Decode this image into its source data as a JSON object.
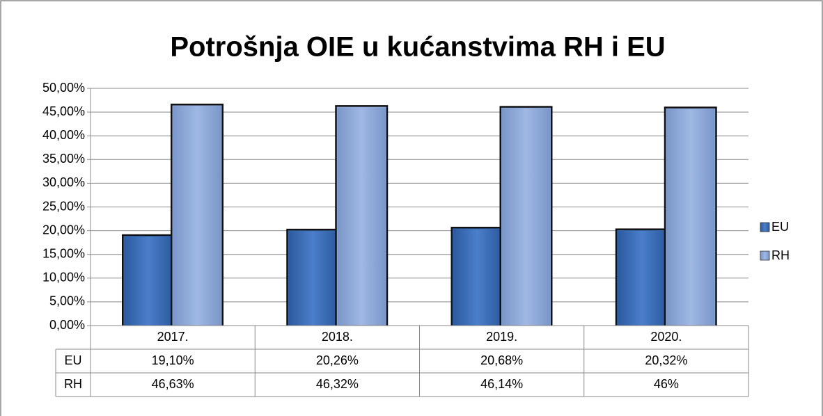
{
  "chart_data": {
    "type": "bar",
    "title": "Potrošnja OIE u kućanstvima RH i EU",
    "categories": [
      "2017.",
      "2018.",
      "2019.",
      "2020."
    ],
    "series": [
      {
        "name": "EU",
        "color": "#3a6db5",
        "values": [
          19.1,
          20.26,
          20.68,
          20.32
        ],
        "value_labels": [
          "19,10%",
          "20,26%",
          "20,68%",
          "20,32%"
        ]
      },
      {
        "name": "RH",
        "color": "#8eaadb",
        "values": [
          46.63,
          46.32,
          46.14,
          46
        ],
        "value_labels": [
          "46,63%",
          "46,32%",
          "46,14%",
          "46%"
        ]
      }
    ],
    "ylim": [
      0,
      50
    ],
    "yticks": [
      {
        "value": 0,
        "label": "0,00%"
      },
      {
        "value": 5,
        "label": "5,00%"
      },
      {
        "value": 10,
        "label": "10,00%"
      },
      {
        "value": 15,
        "label": "15,00%"
      },
      {
        "value": 20,
        "label": "20,00%"
      },
      {
        "value": 25,
        "label": "25,00%"
      },
      {
        "value": 30,
        "label": "30,00%"
      },
      {
        "value": 35,
        "label": "35,00%"
      },
      {
        "value": 40,
        "label": "40,00%"
      },
      {
        "value": 45,
        "label": "45,00%"
      },
      {
        "value": 50,
        "label": "50,00%"
      }
    ],
    "grid": true,
    "legend": "right"
  }
}
